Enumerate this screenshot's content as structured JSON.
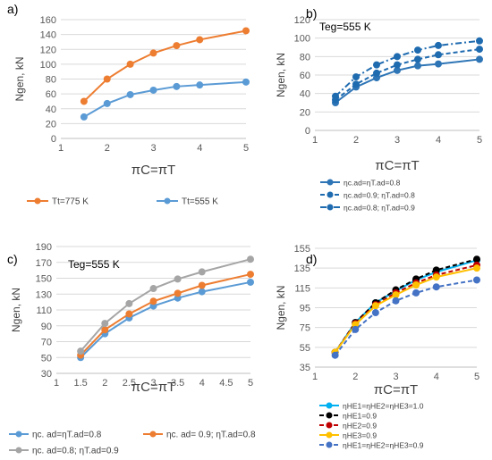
{
  "chart_data": [
    {
      "panel_label": "a)",
      "type": "line",
      "xlabel": "πC=πT",
      "ylabel": "Ngen, kN",
      "xlim": [
        1,
        5
      ],
      "ylim": [
        0,
        160
      ],
      "xticks": [
        1,
        2,
        3,
        4,
        5
      ],
      "yticks": [
        0,
        20,
        40,
        60,
        80,
        100,
        120,
        140,
        160
      ],
      "grid": true,
      "legend_position": "bottom",
      "annotation": "",
      "x": [
        1.5,
        2,
        2.5,
        3,
        3.5,
        4,
        5
      ],
      "series": [
        {
          "name": "Tt=775 K",
          "color": "#ED7D31",
          "dash": "solid",
          "values": [
            50,
            80,
            100,
            115,
            125,
            133,
            145
          ]
        },
        {
          "name": "Tt=555 K",
          "color": "#5B9BD5",
          "dash": "solid",
          "values": [
            29,
            47,
            59,
            65,
            70,
            72,
            76
          ]
        }
      ]
    },
    {
      "panel_label": "b)",
      "type": "line",
      "xlabel": "πC=πT",
      "ylabel": "Ngen, kN",
      "xlim": [
        1,
        5
      ],
      "ylim": [
        0,
        120
      ],
      "xticks": [
        1,
        2,
        3,
        4,
        5
      ],
      "yticks": [
        0,
        20,
        40,
        60,
        80,
        100,
        120
      ],
      "grid": true,
      "legend_position": "bottom",
      "annotation": "Teg=555 K",
      "x": [
        1.5,
        2,
        2.5,
        3,
        3.5,
        4,
        5
      ],
      "series": [
        {
          "name": "ηc.ad=ηT.ad=0.8",
          "color": "#2E75B6",
          "dash": "solid",
          "values": [
            30,
            47,
            57,
            65,
            70,
            72,
            77
          ]
        },
        {
          "name": "ηc.ad=0.9; ηT.ad=0.8",
          "color": "#1F6BB0",
          "dash": "dashed",
          "values": [
            33,
            50,
            62,
            71,
            77,
            82,
            88
          ]
        },
        {
          "name": "ηc.ad=0.8; ηT.ad=0.9",
          "color": "#1F6BB0",
          "dash": "dashdot",
          "values": [
            37,
            58,
            71,
            80,
            87,
            92,
            97
          ]
        }
      ]
    },
    {
      "panel_label": "c)",
      "type": "line",
      "xlabel": "πC=πT",
      "ylabel": "Ngen, kN",
      "xlim": [
        1,
        5
      ],
      "ylim": [
        30,
        190
      ],
      "xticks": [
        1,
        1.5,
        2,
        2.5,
        3,
        3.5,
        4,
        4.5,
        5
      ],
      "yticks": [
        30,
        50,
        70,
        90,
        110,
        130,
        150,
        170,
        190
      ],
      "grid": true,
      "legend_position": "bottom",
      "annotation": "Teg=555 K",
      "x": [
        1.5,
        2,
        2.5,
        3,
        3.5,
        4,
        5
      ],
      "series": [
        {
          "name": "ηc. ad=ηT.ad=0.8",
          "color": "#5B9BD5",
          "dash": "solid",
          "values": [
            50,
            80,
            100,
            115,
            125,
            133,
            145
          ]
        },
        {
          "name": "ηc. ad= 0.9; ηT.ad=0.8",
          "color": "#ED7D31",
          "dash": "solid",
          "values": [
            53,
            85,
            105,
            121,
            131,
            141,
            155
          ]
        },
        {
          "name": "ηc. ad=0.8; ηT.ad=0.9",
          "color": "#A5A5A5",
          "dash": "solid",
          "values": [
            58,
            93,
            118,
            137,
            149,
            158,
            174
          ]
        }
      ]
    },
    {
      "panel_label": "d)",
      "type": "line",
      "xlabel": "πC=πT",
      "ylabel": "Ngen, kN",
      "xlim": [
        1,
        5
      ],
      "ylim": [
        35,
        155
      ],
      "xticks": [
        1,
        2,
        3,
        4,
        5
      ],
      "yticks": [
        35,
        55,
        75,
        95,
        115,
        135,
        155
      ],
      "grid": true,
      "legend_position": "bottom",
      "annotation": "",
      "x": [
        1.5,
        2,
        2.5,
        3,
        3.5,
        4,
        5
      ],
      "series": [
        {
          "name": "ηHE1=ηHE2=ηHE3=1.0",
          "color": "#00B0F0",
          "dash": "solid",
          "values": [
            50,
            80,
            100,
            112,
            123,
            131,
            143
          ]
        },
        {
          "name": "ηHE1=0.9",
          "color": "#000000",
          "dash": "dashed",
          "values": [
            50,
            80,
            100,
            113,
            124,
            133,
            144
          ]
        },
        {
          "name": "ηHE2=0.9",
          "color": "#C00000",
          "dash": "dashed",
          "values": [
            50,
            79,
            98,
            110,
            120,
            128,
            138
          ]
        },
        {
          "name": "ηHE3=0.9",
          "color": "#FFC000",
          "dash": "solid",
          "values": [
            50,
            78,
            97,
            108,
            118,
            126,
            135
          ]
        },
        {
          "name": "ηHE1=ηHE2=ηHE3=0.9",
          "color": "#4472C4",
          "dash": "dashed",
          "values": [
            47,
            73,
            90,
            102,
            110,
            116,
            123
          ]
        }
      ]
    }
  ]
}
